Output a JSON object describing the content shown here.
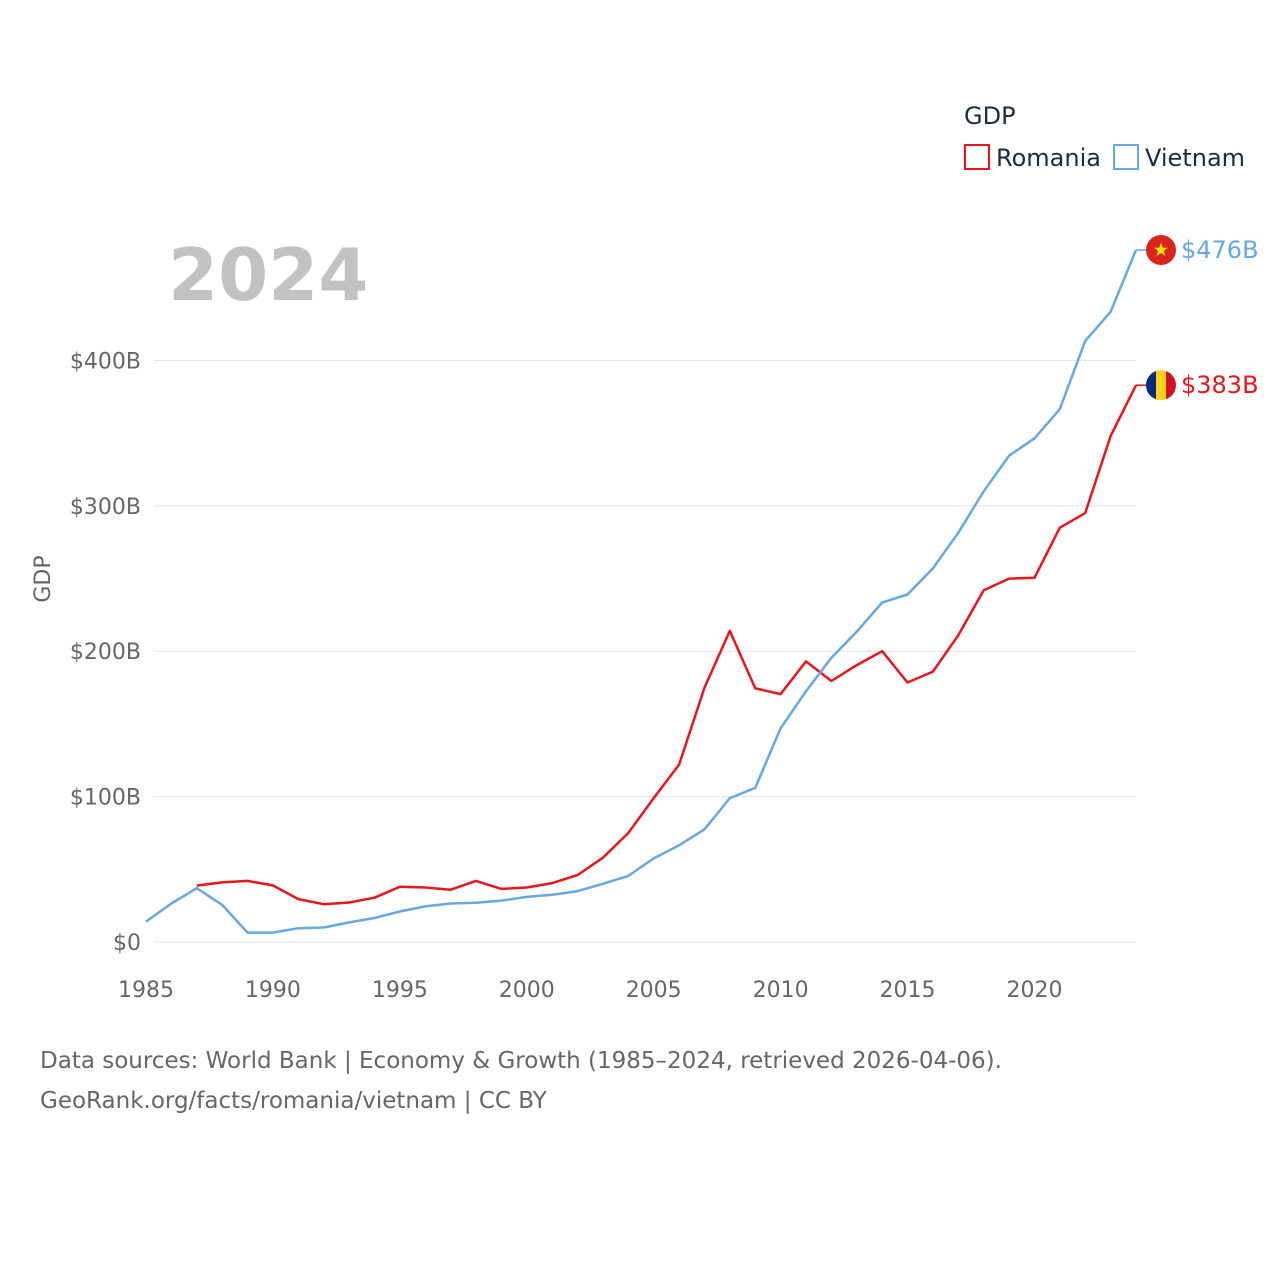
{
  "chart_data": {
    "type": "line",
    "title": "",
    "ylabel": "GDP",
    "xlabel": "",
    "year_label": "2024",
    "legend": {
      "title": "GDP",
      "position": "top-right"
    },
    "x_ticks": [
      "1985",
      "1990",
      "1995",
      "2000",
      "2005",
      "2010",
      "2015",
      "2020"
    ],
    "x_tick_values": [
      1985,
      1990,
      1995,
      2000,
      2005,
      2010,
      2015,
      2020
    ],
    "y_ticks": [
      "$0",
      "$100B",
      "$200B",
      "$300B",
      "$400B"
    ],
    "y_tick_values": [
      0,
      100,
      200,
      300,
      400
    ],
    "xlim": [
      1985,
      2024
    ],
    "ylim": [
      0,
      476
    ],
    "grid": true,
    "series": [
      {
        "name": "Romania",
        "color": "#e8161c",
        "end_label": "$383B",
        "flag": "romania-flag",
        "x": [
          1987,
          1988,
          1989,
          1990,
          1991,
          1992,
          1993,
          1994,
          1995,
          1996,
          1997,
          1998,
          1999,
          2000,
          2001,
          2002,
          2003,
          2004,
          2005,
          2006,
          2007,
          2008,
          2009,
          2010,
          2011,
          2012,
          2013,
          2014,
          2015,
          2016,
          2017,
          2018,
          2019,
          2020,
          2021,
          2022,
          2023,
          2024
        ],
        "values": [
          38.8,
          41.0,
          42.0,
          38.9,
          29.5,
          26.0,
          27.2,
          30.5,
          38.0,
          37.5,
          36.0,
          42.0,
          36.5,
          37.5,
          40.5,
          46.0,
          58.0,
          75.0,
          99.0,
          122.0,
          175.0,
          214.0,
          174.5,
          170.5,
          193.0,
          179.5,
          190.5,
          200.0,
          178.5,
          186.0,
          211.0,
          242.0,
          250.0,
          250.5,
          285.0,
          295.0,
          348.0,
          383.0
        ]
      },
      {
        "name": "Vietnam",
        "color": "#66a8e0",
        "end_label": "$476B",
        "flag": "vietnam-flag",
        "x": [
          1985,
          1986,
          1987,
          1988,
          1989,
          1990,
          1991,
          1992,
          1993,
          1994,
          1995,
          1996,
          1997,
          1998,
          1999,
          2000,
          2001,
          2002,
          2003,
          2004,
          2005,
          2006,
          2007,
          2008,
          2009,
          2010,
          2011,
          2012,
          2013,
          2014,
          2015,
          2016,
          2017,
          2018,
          2019,
          2020,
          2021,
          2022,
          2023,
          2024
        ],
        "values": [
          14.0,
          26.5,
          37.0,
          25.5,
          6.5,
          6.5,
          9.5,
          10.0,
          13.5,
          16.5,
          21.0,
          24.5,
          26.5,
          27.0,
          28.5,
          31.0,
          32.5,
          35.0,
          40.0,
          45.5,
          57.5,
          66.5,
          77.5,
          99.0,
          106.0,
          147.0,
          172.5,
          195.5,
          213.5,
          233.5,
          239.0,
          257.0,
          281.5,
          310.0,
          334.5,
          346.5,
          366.5,
          413.5,
          433.5,
          476.0
        ]
      }
    ]
  },
  "source": {
    "line1": "Data sources: World Bank | Economy & Growth (1985–2024, retrieved 2026-04-06).",
    "line2": "GeoRank.org/facts/romania/vietnam | CC BY"
  }
}
